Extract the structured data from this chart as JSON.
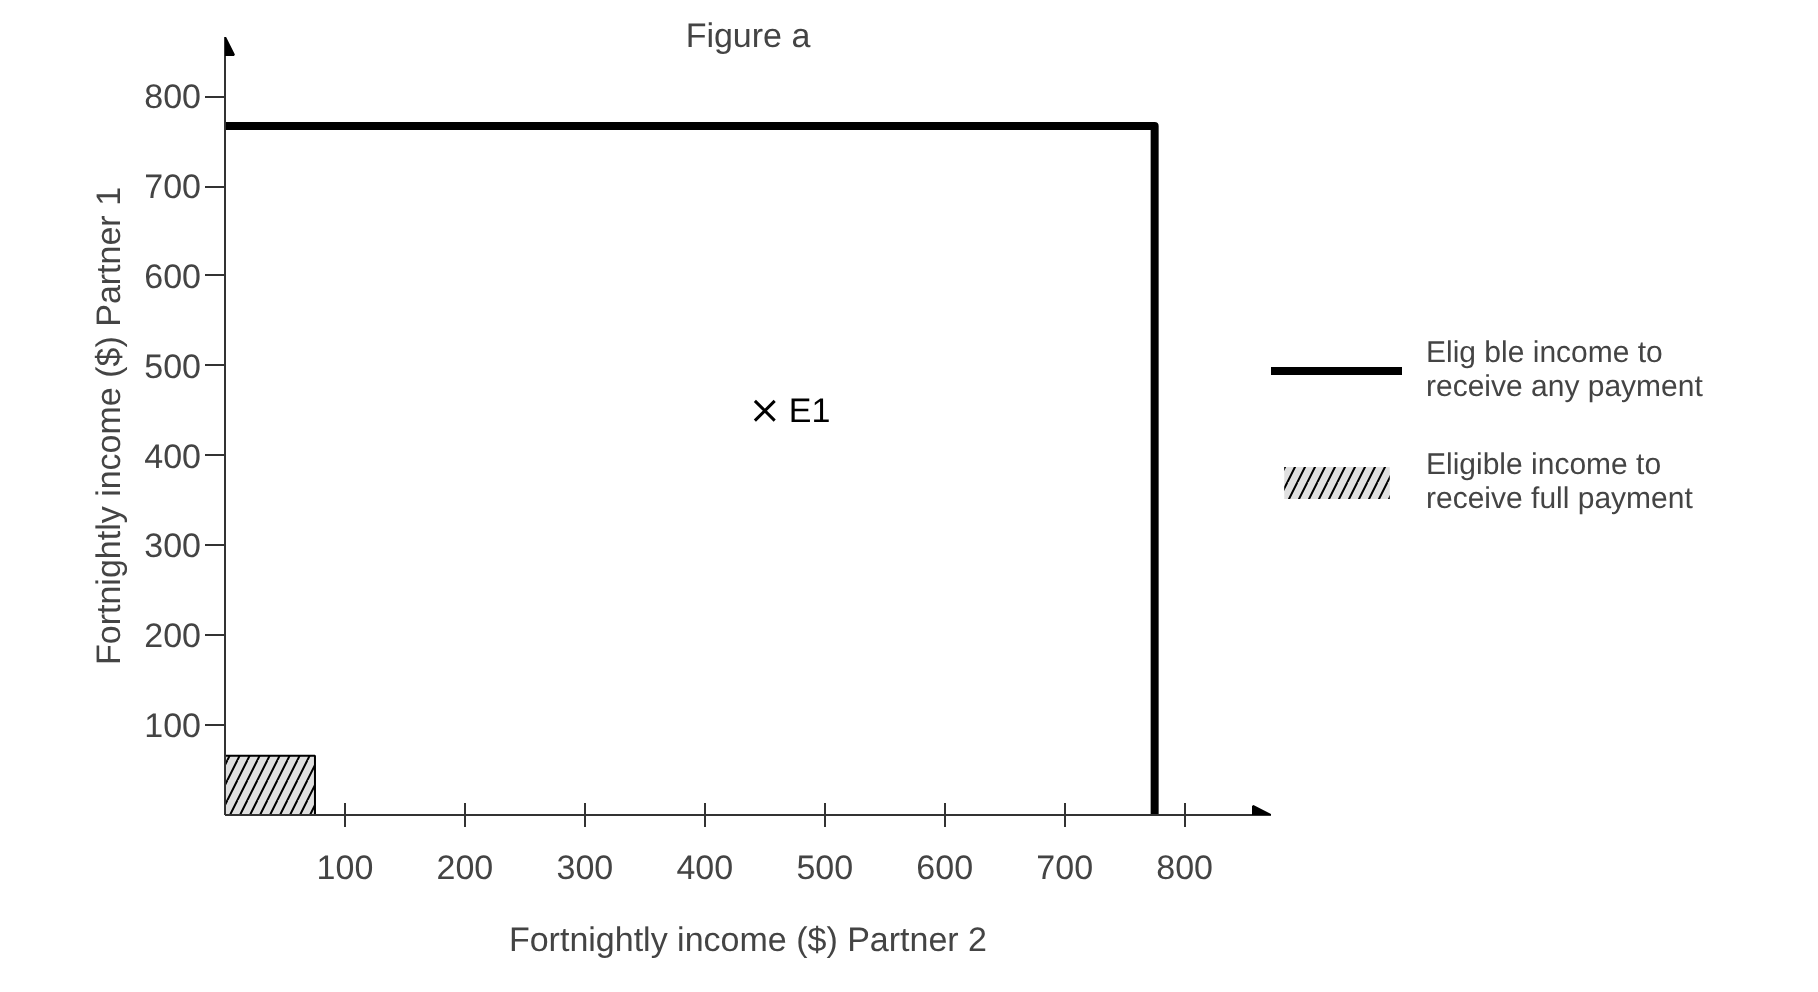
{
  "chart_data": {
    "type": "line",
    "title": "Figure a",
    "xlabel": "Fortnightly income ($) Partner 2",
    "ylabel": "Fortnightly income ($) Partner 1",
    "xlim": [
      0,
      872
    ],
    "ylim": [
      0,
      866
    ],
    "xticks": [
      100,
      200,
      300,
      400,
      500,
      600,
      700,
      800
    ],
    "yticks": [
      100,
      200,
      300,
      400,
      500,
      600,
      700,
      800
    ],
    "grid": false,
    "legend": "right",
    "line_style": "solid",
    "series": [
      {
        "name": "Elig ble income to\nreceive any payment",
        "color": "#000000",
        "x": [
          0,
          775,
          775
        ],
        "values": [
          767,
          767,
          0
        ]
      },
      {
        "type": "area",
        "name": "Eligible income to\nreceive full payment",
        "color": "#000000",
        "x": [
          0,
          75
        ],
        "values": [
          66,
          66
        ]
      },
      {
        "type": "scatter",
        "name": "E1",
        "color": "#000000",
        "marker": "cross",
        "x": [
          450
        ],
        "values": [
          450
        ]
      }
    ]
  }
}
